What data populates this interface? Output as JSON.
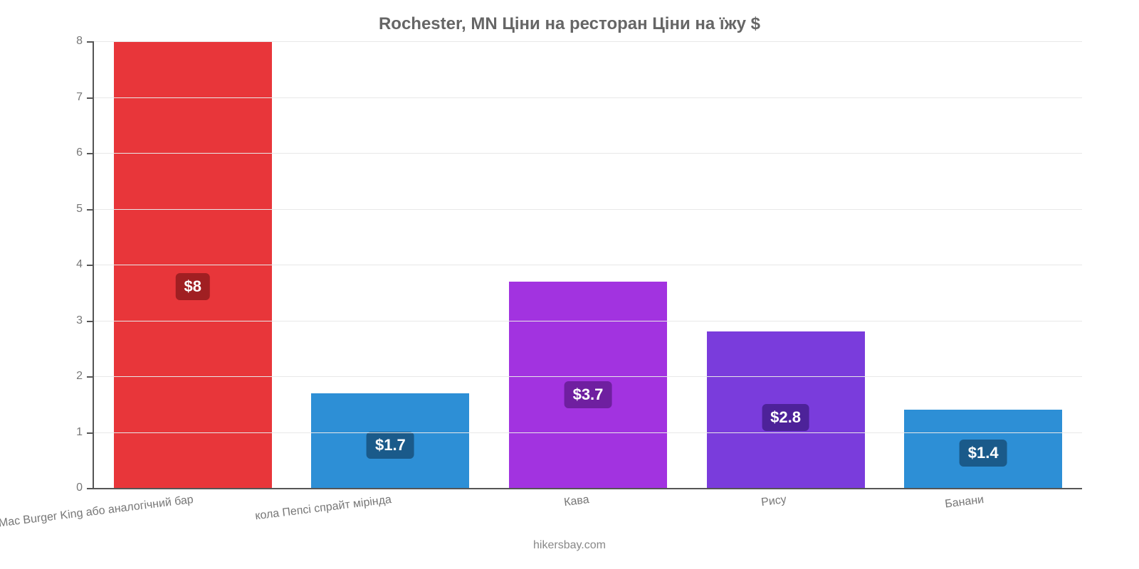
{
  "title": "Rochester, MN Ціни на ресторан Ціни на їжу $",
  "title_color": "#666666",
  "title_fontsize": 24,
  "footer": "hikersbay.com",
  "footer_color": "#888888",
  "footer_fontsize": 16,
  "chart": {
    "type": "bar",
    "background_color": "#ffffff",
    "grid_color": "#e8e8e8",
    "axis_color": "#555555",
    "ylim": [
      0,
      8
    ],
    "ytick_step": 1,
    "ylabel_color": "#777777",
    "ylabel_fontsize": 16,
    "xlabel_color": "#777777",
    "xlabel_fontsize": 16,
    "xlabel_rotation_deg": -7,
    "bar_width_ratio": 0.8,
    "value_badge_fontsize": 22,
    "value_badge_radius": 6,
    "categories": [
      "Mac Burger King або аналогічний бар",
      "кола Пепсі спрайт мірінда",
      "Кава",
      "Рису",
      "Банани"
    ],
    "values": [
      8,
      1.7,
      3.7,
      2.8,
      1.4
    ],
    "value_labels": [
      "$8",
      "$1.7",
      "$3.7",
      "$2.8",
      "$1.4"
    ],
    "bar_colors": [
      "#e8363a",
      "#2d8fd6",
      "#a233e0",
      "#7a3cdc",
      "#2d8fd6"
    ],
    "badge_colors": [
      "#a01f22",
      "#1a5a8a",
      "#6f1fa0",
      "#4d2299",
      "#1a5a8a"
    ],
    "value_label_y_ratio": 0.55
  }
}
